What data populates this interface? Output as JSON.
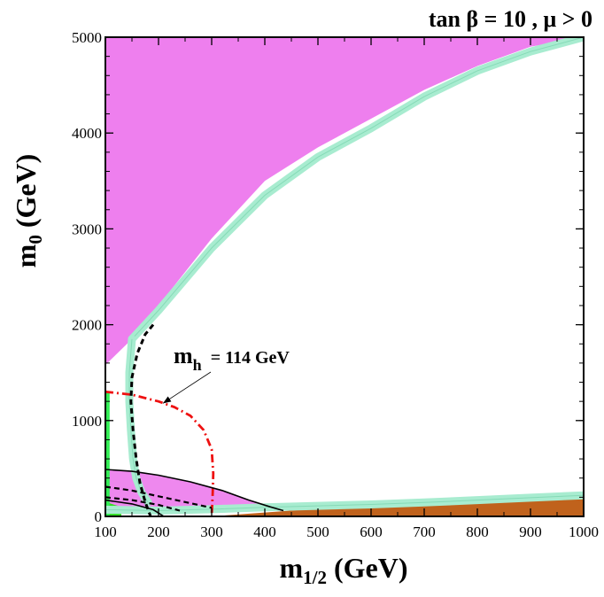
{
  "chart_data": {
    "type": "contour",
    "title": "tan β = 10 ,  μ > 0",
    "xlabel_main": "m",
    "xlabel_sub": "1/2",
    "xlabel_unit": " (GeV)",
    "ylabel_main": "m",
    "ylabel_sub": "0",
    "ylabel_unit": " (GeV)",
    "xlim": [
      100,
      1000
    ],
    "ylim": [
      0,
      5000
    ],
    "x_ticks": [
      100,
      200,
      300,
      400,
      500,
      600,
      700,
      800,
      900,
      1000
    ],
    "y_ticks": [
      0,
      1000,
      2000,
      3000,
      4000,
      5000
    ],
    "annotation": {
      "main": "m",
      "sub": "h",
      "value": "= 114 GeV",
      "points_to": [
        225,
        1180
      ]
    },
    "regions": [
      {
        "name": "excluded-no-ewsb",
        "color": "#ee7fee",
        "points": [
          [
            100,
            1580
          ],
          [
            150,
            1850
          ],
          [
            200,
            2200
          ],
          [
            300,
            2900
          ],
          [
            400,
            3500
          ],
          [
            500,
            3850
          ],
          [
            600,
            4150
          ],
          [
            700,
            4450
          ],
          [
            800,
            4700
          ],
          [
            900,
            4900
          ],
          [
            1000,
            5000
          ],
          [
            100,
            5000
          ]
        ]
      },
      {
        "name": "stau-lsp",
        "color": "#c0621c",
        "points": [
          [
            300,
            0
          ],
          [
            500,
            80
          ],
          [
            700,
            110
          ],
          [
            900,
            170
          ],
          [
            1000,
            210
          ],
          [
            1000,
            0
          ]
        ]
      },
      {
        "name": "bsgamma-excluded",
        "color": "#ee88ee",
        "points": [
          [
            100,
            490
          ],
          [
            150,
            470
          ],
          [
            200,
            430
          ],
          [
            260,
            360
          ],
          [
            320,
            270
          ],
          [
            370,
            170
          ],
          [
            410,
            100
          ],
          [
            300,
            90
          ],
          [
            200,
            70
          ],
          [
            120,
            50
          ],
          [
            100,
            50
          ]
        ]
      },
      {
        "name": "green-small",
        "color": "#33dd22",
        "points": [
          [
            100,
            0
          ],
          [
            130,
            0
          ],
          [
            130,
            100
          ],
          [
            100,
            150
          ]
        ]
      },
      {
        "name": "green-strip-left",
        "color": "#33ee55",
        "points": [
          [
            100,
            0
          ],
          [
            108,
            0
          ],
          [
            108,
            1300
          ],
          [
            100,
            1300
          ]
        ]
      }
    ],
    "bands": [
      {
        "name": "relic-density-upper-band",
        "color": "#a8ecd0",
        "points": [
          [
            150,
            1850
          ],
          [
            200,
            2150
          ],
          [
            300,
            2800
          ],
          [
            400,
            3350
          ],
          [
            500,
            3750
          ],
          [
            600,
            4050
          ],
          [
            700,
            4380
          ],
          [
            800,
            4650
          ],
          [
            900,
            4850
          ],
          [
            1000,
            5000
          ]
        ]
      },
      {
        "name": "relic-density-focus-strip",
        "color": "#a8ecd0",
        "points": [
          [
            150,
            1850
          ],
          [
            145,
            1500
          ],
          [
            145,
            1200
          ],
          [
            148,
            900
          ],
          [
            152,
            600
          ],
          [
            158,
            400
          ],
          [
            168,
            250
          ],
          [
            180,
            150
          ]
        ]
      },
      {
        "name": "relic-density-coannihilation",
        "color": "#a8ecd0",
        "points": [
          [
            100,
            70
          ],
          [
            200,
            60
          ],
          [
            300,
            75
          ],
          [
            400,
            95
          ],
          [
            500,
            110
          ],
          [
            600,
            125
          ],
          [
            700,
            145
          ],
          [
            800,
            170
          ],
          [
            900,
            195
          ],
          [
            1000,
            220
          ]
        ]
      }
    ],
    "lines": [
      {
        "name": "higgs-mass-114-contour",
        "color": "#ee1111",
        "style": "dashdot",
        "points": [
          [
            100,
            1300
          ],
          [
            150,
            1270
          ],
          [
            200,
            1200
          ],
          [
            230,
            1140
          ],
          [
            260,
            1050
          ],
          [
            285,
            900
          ],
          [
            300,
            700
          ],
          [
            303,
            450
          ],
          [
            302,
            250
          ],
          [
            300,
            0
          ]
        ]
      },
      {
        "name": "chargino-limit-dashed",
        "color": "#000000",
        "style": "dashed",
        "points": [
          [
            190,
            2000
          ],
          [
            175,
            1900
          ],
          [
            160,
            1700
          ],
          [
            150,
            1450
          ],
          [
            148,
            1200
          ],
          [
            152,
            900
          ],
          [
            158,
            600
          ],
          [
            165,
            350
          ],
          [
            175,
            150
          ],
          [
            185,
            0
          ]
        ]
      },
      {
        "name": "bsgamma-contour-solid-upper",
        "color": "#000000",
        "style": "solid",
        "points": [
          [
            100,
            490
          ],
          [
            150,
            470
          ],
          [
            200,
            430
          ],
          [
            260,
            360
          ],
          [
            320,
            270
          ],
          [
            370,
            170
          ],
          [
            410,
            100
          ],
          [
            435,
            60
          ]
        ]
      },
      {
        "name": "gmu-contour-dashed-1",
        "color": "#000000",
        "style": "dashed",
        "points": [
          [
            100,
            310
          ],
          [
            150,
            270
          ],
          [
            200,
            210
          ],
          [
            250,
            150
          ],
          [
            300,
            90
          ]
        ]
      },
      {
        "name": "gmu-contour-dashed-2",
        "color": "#000000",
        "style": "dashed",
        "points": [
          [
            100,
            200
          ],
          [
            150,
            170
          ],
          [
            200,
            120
          ],
          [
            240,
            60
          ]
        ]
      },
      {
        "name": "gmu-contour-solid-inner",
        "color": "#000000",
        "style": "solid",
        "points": [
          [
            100,
            170
          ],
          [
            150,
            130
          ],
          [
            190,
            70
          ],
          [
            210,
            0
          ]
        ]
      }
    ]
  }
}
